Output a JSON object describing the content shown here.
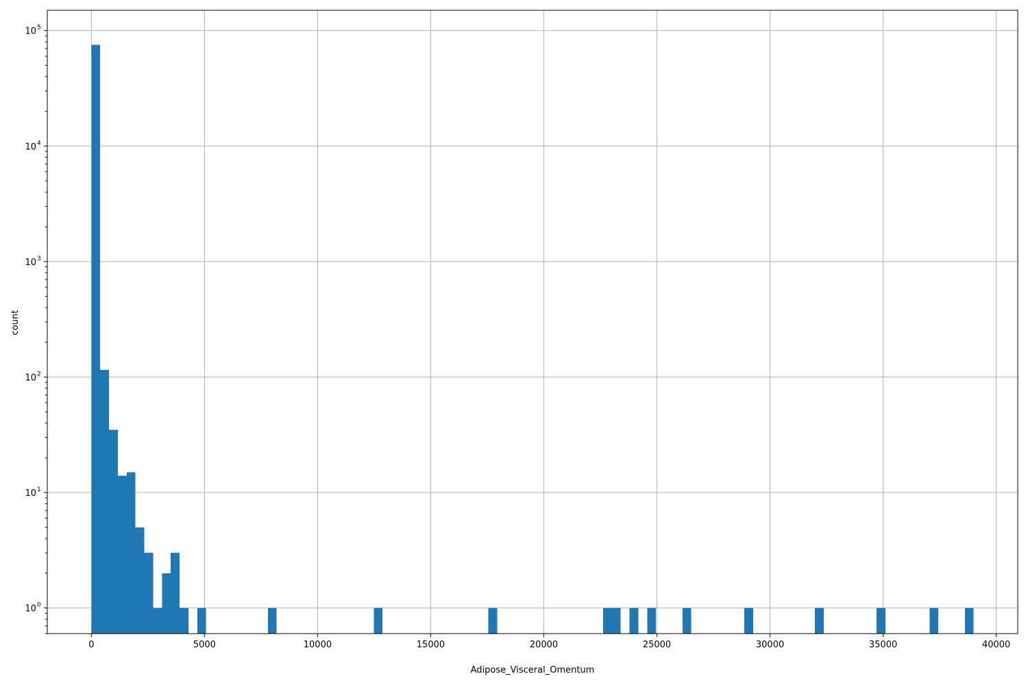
{
  "chart_data": {
    "type": "bar",
    "title": "",
    "xlabel": "Adipose_Visceral_Omentum",
    "ylabel": "count",
    "xlim": [
      -1950,
      40950
    ],
    "ylim": [
      0.6,
      150000
    ],
    "yscale": "log",
    "grid": true,
    "bar_color": "#1f77b4",
    "bin_width": 390,
    "x_ticks": [
      {
        "value": 0,
        "label": "0"
      },
      {
        "value": 5000,
        "label": "5000"
      },
      {
        "value": 10000,
        "label": "10000"
      },
      {
        "value": 15000,
        "label": "15000"
      },
      {
        "value": 20000,
        "label": "20000"
      },
      {
        "value": 25000,
        "label": "25000"
      },
      {
        "value": 30000,
        "label": "30000"
      },
      {
        "value": 35000,
        "label": "35000"
      },
      {
        "value": 40000,
        "label": "40000"
      }
    ],
    "y_ticks": [
      {
        "value": 1,
        "base": "10",
        "exp": "0"
      },
      {
        "value": 10,
        "base": "10",
        "exp": "1"
      },
      {
        "value": 100,
        "base": "10",
        "exp": "2"
      },
      {
        "value": 1000,
        "base": "10",
        "exp": "3"
      },
      {
        "value": 10000,
        "base": "10",
        "exp": "4"
      },
      {
        "value": 100000,
        "base": "10",
        "exp": "5"
      }
    ],
    "bins": [
      {
        "x0": 0,
        "count": 75000
      },
      {
        "x0": 390,
        "count": 115
      },
      {
        "x0": 780,
        "count": 35
      },
      {
        "x0": 1170,
        "count": 14
      },
      {
        "x0": 1560,
        "count": 15
      },
      {
        "x0": 1950,
        "count": 5
      },
      {
        "x0": 2340,
        "count": 3
      },
      {
        "x0": 2730,
        "count": 1
      },
      {
        "x0": 3120,
        "count": 2
      },
      {
        "x0": 3510,
        "count": 3
      },
      {
        "x0": 3900,
        "count": 1
      },
      {
        "x0": 4680,
        "count": 1
      },
      {
        "x0": 7800,
        "count": 1
      },
      {
        "x0": 12480,
        "count": 1
      },
      {
        "x0": 17550,
        "count": 1
      },
      {
        "x0": 22620,
        "count": 1
      },
      {
        "x0": 23010,
        "count": 1
      },
      {
        "x0": 23790,
        "count": 1
      },
      {
        "x0": 24570,
        "count": 1
      },
      {
        "x0": 26130,
        "count": 1
      },
      {
        "x0": 28860,
        "count": 1
      },
      {
        "x0": 31980,
        "count": 1
      },
      {
        "x0": 34710,
        "count": 1
      },
      {
        "x0": 37050,
        "count": 1
      },
      {
        "x0": 38610,
        "count": 1
      }
    ]
  }
}
